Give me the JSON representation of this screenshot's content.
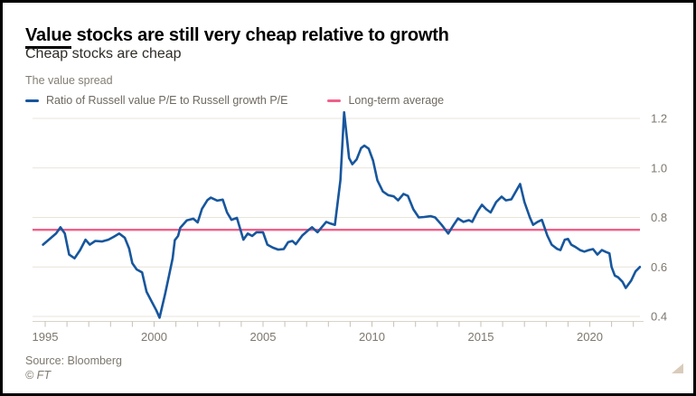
{
  "header": {
    "title_underlined": "Value",
    "title_rest": " stocks are still very cheap relative to growth",
    "subtitle": "Cheap stocks are cheap",
    "kicker": "The value spread"
  },
  "legend": [
    {
      "label": "Ratio of Russell value P/E to Russell growth P/E",
      "color": "#17569d"
    },
    {
      "label": "Long-term average",
      "color": "#f0608a"
    }
  ],
  "footer": {
    "source": "Source: Bloomberg",
    "copyright": "© FT"
  },
  "colors": {
    "series_blue": "#17569d",
    "average_pink": "#f0608a",
    "gridline": "#e9e4db",
    "axis_line": "#d9d3c9",
    "tick": "#c6c0b5",
    "tick_label": "#7d776d"
  },
  "chart_data": {
    "type": "line",
    "title": "The value spread",
    "xlabel": "",
    "ylabel": "Ratio of Russell value P/E to Russell growth P/E",
    "grid": "horizontal",
    "legend_position": "top",
    "y_axis_side": "right",
    "y_range": [
      0.4,
      1.2
    ],
    "y_ticks": [
      {
        "value": 0.4,
        "label": "0.4"
      },
      {
        "value": 0.6,
        "label": "0.6"
      },
      {
        "value": 0.8,
        "label": "0.8"
      },
      {
        "value": 1.0,
        "label": "1.0"
      },
      {
        "value": 1.2,
        "label": "1.2"
      }
    ],
    "x_minor_tick_years": [
      1995,
      2022
    ],
    "x_ticks_major": [
      {
        "value": 1995,
        "label": "1995"
      },
      {
        "value": 2000,
        "label": "2000"
      },
      {
        "value": 2005,
        "label": "2005"
      },
      {
        "value": 2010,
        "label": "2010"
      },
      {
        "value": 2015,
        "label": "2015"
      },
      {
        "value": 2020,
        "label": "2020"
      }
    ],
    "series": [
      {
        "name": "Ratio of Russell value P/E to Russell growth P/E",
        "color": "#17569d",
        "points": [
          [
            1994.9,
            0.69
          ],
          [
            1995.1,
            0.705
          ],
          [
            1995.3,
            0.72
          ],
          [
            1995.5,
            0.735
          ],
          [
            1995.7,
            0.76
          ],
          [
            1995.9,
            0.735
          ],
          [
            1996.1,
            0.65
          ],
          [
            1996.35,
            0.635
          ],
          [
            1996.6,
            0.668
          ],
          [
            1996.85,
            0.71
          ],
          [
            1997.05,
            0.69
          ],
          [
            1997.3,
            0.705
          ],
          [
            1997.6,
            0.703
          ],
          [
            1997.9,
            0.71
          ],
          [
            1998.15,
            0.722
          ],
          [
            1998.4,
            0.735
          ],
          [
            1998.65,
            0.718
          ],
          [
            1998.85,
            0.675
          ],
          [
            1999.0,
            0.615
          ],
          [
            1999.2,
            0.59
          ],
          [
            1999.45,
            0.578
          ],
          [
            1999.65,
            0.5
          ],
          [
            1999.9,
            0.458
          ],
          [
            2000.1,
            0.425
          ],
          [
            2000.25,
            0.395
          ],
          [
            2000.5,
            0.49
          ],
          [
            2000.7,
            0.572
          ],
          [
            2000.85,
            0.635
          ],
          [
            2000.95,
            0.708
          ],
          [
            2001.1,
            0.725
          ],
          [
            2001.2,
            0.758
          ],
          [
            2001.5,
            0.788
          ],
          [
            2001.8,
            0.795
          ],
          [
            2002.0,
            0.78
          ],
          [
            2002.2,
            0.835
          ],
          [
            2002.45,
            0.87
          ],
          [
            2002.6,
            0.88
          ],
          [
            2002.9,
            0.868
          ],
          [
            2003.15,
            0.872
          ],
          [
            2003.35,
            0.82
          ],
          [
            2003.55,
            0.79
          ],
          [
            2003.8,
            0.798
          ],
          [
            2004.1,
            0.71
          ],
          [
            2004.3,
            0.735
          ],
          [
            2004.5,
            0.725
          ],
          [
            2004.7,
            0.74
          ],
          [
            2005.0,
            0.74
          ],
          [
            2005.2,
            0.69
          ],
          [
            2005.45,
            0.678
          ],
          [
            2005.7,
            0.67
          ],
          [
            2005.95,
            0.672
          ],
          [
            2006.15,
            0.7
          ],
          [
            2006.35,
            0.705
          ],
          [
            2006.5,
            0.692
          ],
          [
            2006.8,
            0.727
          ],
          [
            2007.1,
            0.75
          ],
          [
            2007.25,
            0.76
          ],
          [
            2007.5,
            0.74
          ],
          [
            2007.9,
            0.782
          ],
          [
            2008.1,
            0.775
          ],
          [
            2008.3,
            0.77
          ],
          [
            2008.55,
            0.95
          ],
          [
            2008.72,
            1.225
          ],
          [
            2008.95,
            1.04
          ],
          [
            2009.1,
            1.015
          ],
          [
            2009.3,
            1.035
          ],
          [
            2009.5,
            1.08
          ],
          [
            2009.65,
            1.09
          ],
          [
            2009.85,
            1.078
          ],
          [
            2010.05,
            1.03
          ],
          [
            2010.25,
            0.95
          ],
          [
            2010.5,
            0.905
          ],
          [
            2010.75,
            0.89
          ],
          [
            2011.0,
            0.885
          ],
          [
            2011.2,
            0.869
          ],
          [
            2011.45,
            0.895
          ],
          [
            2011.65,
            0.887
          ],
          [
            2011.9,
            0.833
          ],
          [
            2012.15,
            0.8
          ],
          [
            2012.4,
            0.802
          ],
          [
            2012.7,
            0.805
          ],
          [
            2012.9,
            0.8
          ],
          [
            2013.2,
            0.77
          ],
          [
            2013.5,
            0.735
          ],
          [
            2013.75,
            0.77
          ],
          [
            2013.95,
            0.796
          ],
          [
            2014.2,
            0.782
          ],
          [
            2014.45,
            0.789
          ],
          [
            2014.6,
            0.782
          ],
          [
            2014.85,
            0.825
          ],
          [
            2015.05,
            0.851
          ],
          [
            2015.25,
            0.833
          ],
          [
            2015.45,
            0.82
          ],
          [
            2015.7,
            0.862
          ],
          [
            2015.95,
            0.884
          ],
          [
            2016.15,
            0.869
          ],
          [
            2016.4,
            0.873
          ],
          [
            2016.65,
            0.912
          ],
          [
            2016.8,
            0.935
          ],
          [
            2017.0,
            0.862
          ],
          [
            2017.25,
            0.8
          ],
          [
            2017.4,
            0.77
          ],
          [
            2017.6,
            0.782
          ],
          [
            2017.8,
            0.79
          ],
          [
            2018.05,
            0.727
          ],
          [
            2018.25,
            0.69
          ],
          [
            2018.5,
            0.673
          ],
          [
            2018.65,
            0.668
          ],
          [
            2018.85,
            0.71
          ],
          [
            2019.0,
            0.713
          ],
          [
            2019.15,
            0.69
          ],
          [
            2019.35,
            0.68
          ],
          [
            2019.55,
            0.668
          ],
          [
            2019.75,
            0.662
          ],
          [
            2019.95,
            0.668
          ],
          [
            2020.15,
            0.672
          ],
          [
            2020.35,
            0.65
          ],
          [
            2020.55,
            0.668
          ],
          [
            2020.75,
            0.66
          ],
          [
            2020.9,
            0.655
          ],
          [
            2021.0,
            0.6
          ],
          [
            2021.15,
            0.565
          ],
          [
            2021.3,
            0.558
          ],
          [
            2021.5,
            0.54
          ],
          [
            2021.65,
            0.515
          ],
          [
            2021.9,
            0.545
          ],
          [
            2022.1,
            0.582
          ],
          [
            2022.3,
            0.6
          ]
        ]
      },
      {
        "name": "Long-term average",
        "color": "#f0608a",
        "value": 0.75
      }
    ]
  }
}
